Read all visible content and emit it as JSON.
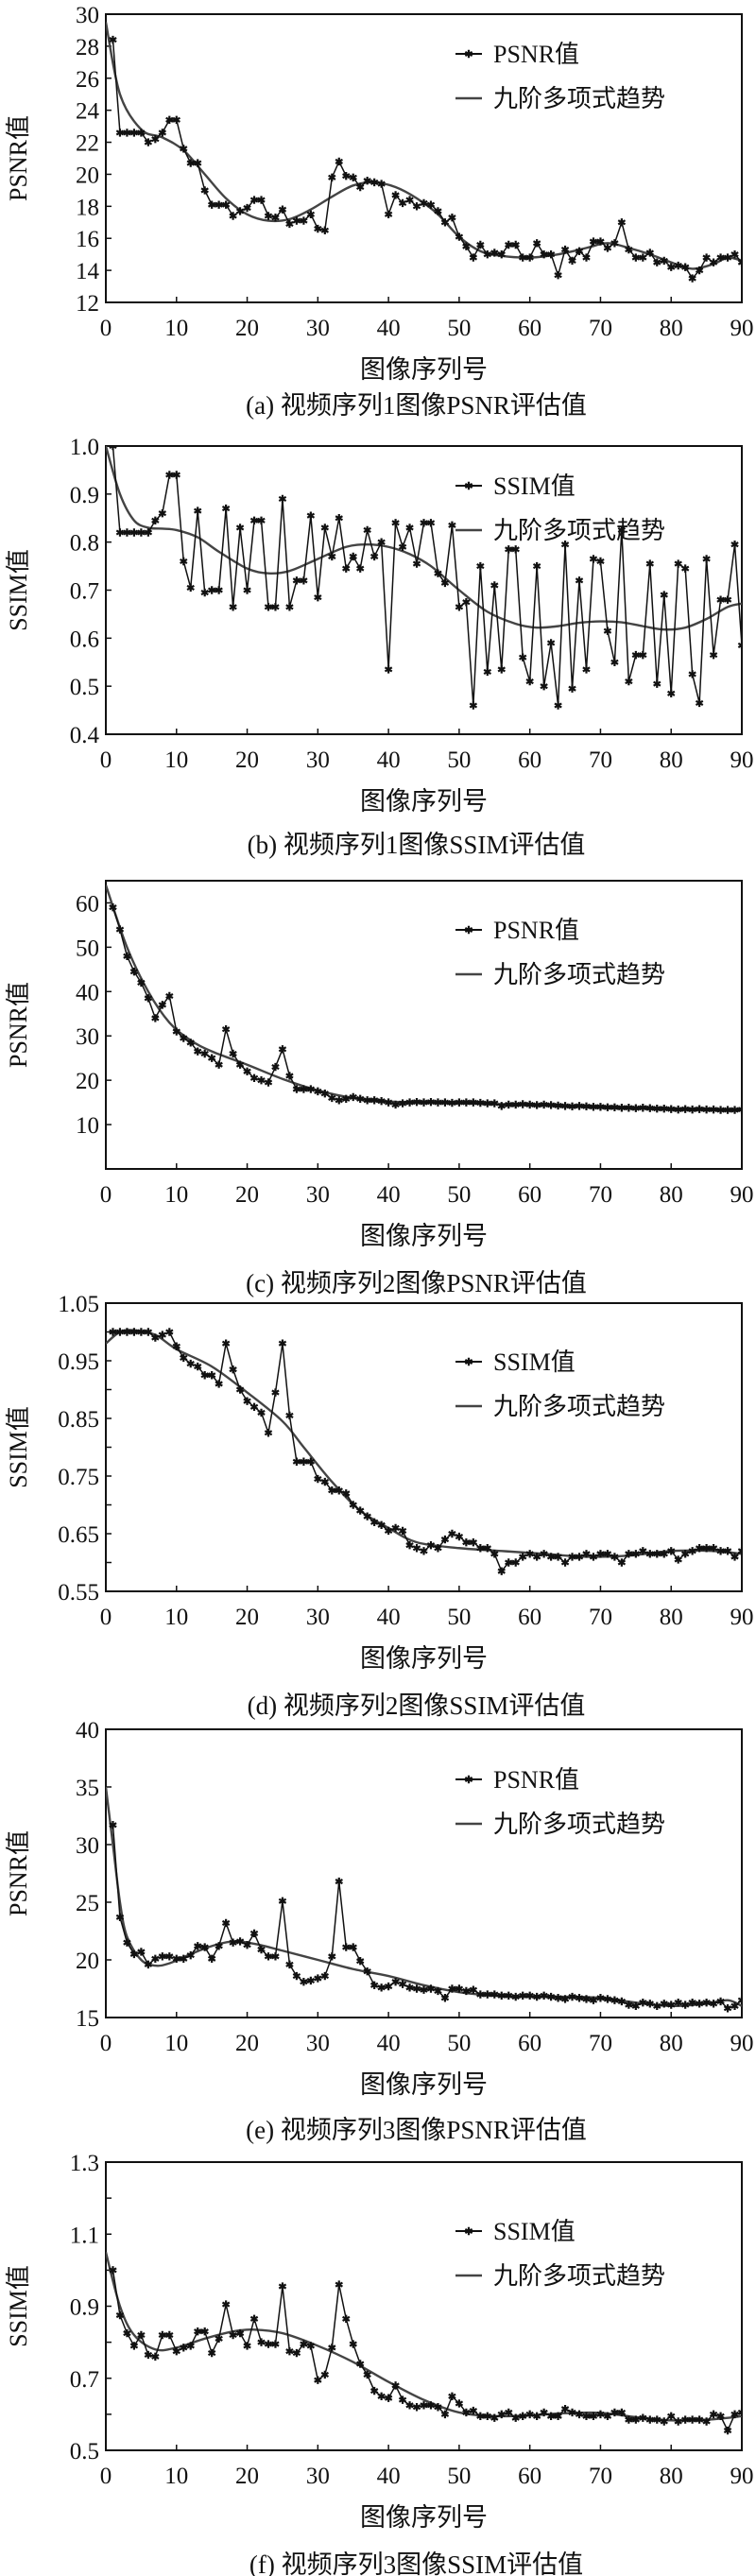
{
  "chart_data": [
    {
      "type": "line",
      "caption": "(a) 视频序列1图像PSNR评估值",
      "xlabel": "图像序列号",
      "ylabel": "PSNR值",
      "xlim": [
        0,
        90
      ],
      "ylim": [
        12,
        30
      ],
      "xticks": [
        0,
        10,
        20,
        30,
        40,
        50,
        60,
        70,
        80,
        90
      ],
      "yticks": [
        12,
        14,
        16,
        18,
        20,
        22,
        24,
        26,
        28,
        30
      ],
      "yminor": [],
      "legend": [
        "PSNR值",
        "九阶多项式趋势"
      ],
      "legend_position": "top-right",
      "series": [
        {
          "name": "PSNR值",
          "x_start": 1,
          "values": [
            28.4,
            22.6,
            22.6,
            22.6,
            22.6,
            22.0,
            22.2,
            22.6,
            23.4,
            23.4,
            21.6,
            20.7,
            20.7,
            19.0,
            18.1,
            18.1,
            18.1,
            17.4,
            17.7,
            17.9,
            18.4,
            18.4,
            17.4,
            17.3,
            17.8,
            16.9,
            17.1,
            17.1,
            17.5,
            16.6,
            16.5,
            19.8,
            20.8,
            19.9,
            19.8,
            19.2,
            19.6,
            19.5,
            19.4,
            17.5,
            18.7,
            18.2,
            18.4,
            18.0,
            18.2,
            18.1,
            17.7,
            17.0,
            17.3,
            16.1,
            15.5,
            14.8,
            15.6,
            15.0,
            15.1,
            15.0,
            15.6,
            15.6,
            14.8,
            14.8,
            15.7,
            15.0,
            15.0,
            13.7,
            15.3,
            14.6,
            15.2,
            14.8,
            15.8,
            15.8,
            15.4,
            15.7,
            17.0,
            15.3,
            14.8,
            14.8,
            15.1,
            14.5,
            14.6,
            14.2,
            14.3,
            14.2,
            13.5,
            14.0,
            14.8,
            14.5,
            14.8,
            14.8,
            15.0,
            14.5
          ]
        },
        {
          "name": "九阶多项式趋势",
          "x": [
            0,
            2,
            5,
            8,
            11,
            14,
            17,
            20,
            23,
            26,
            29,
            32,
            35,
            38,
            41,
            44,
            47,
            50,
            53,
            56,
            60,
            64,
            68,
            71,
            74,
            77,
            80,
            83,
            86,
            88,
            90
          ],
          "values": [
            29.5,
            25.0,
            22.8,
            22.3,
            21.5,
            20.0,
            18.5,
            17.5,
            17.1,
            17.2,
            17.8,
            18.6,
            19.3,
            19.5,
            19.2,
            18.5,
            17.5,
            16.1,
            15.2,
            14.9,
            14.8,
            15.0,
            15.4,
            15.7,
            15.4,
            15.0,
            14.5,
            14.1,
            14.4,
            14.8,
            14.6
          ]
        }
      ]
    },
    {
      "type": "line",
      "caption": "(b) 视频序列1图像SSIM评估值",
      "xlabel": "图像序列号",
      "ylabel": "SSIM值",
      "xlim": [
        0,
        90
      ],
      "ylim": [
        0.4,
        1.0
      ],
      "xticks": [
        0,
        10,
        20,
        30,
        40,
        50,
        60,
        70,
        80,
        90
      ],
      "yticks": [
        0.4,
        0.5,
        0.6,
        0.7,
        0.8,
        0.9,
        1.0
      ],
      "yminor": [],
      "legend": [
        "SSIM值",
        "九阶多项式趋势"
      ],
      "legend_position": "top-right",
      "series": [
        {
          "name": "SSIM值",
          "x_start": 1,
          "values": [
            1.0,
            0.82,
            0.82,
            0.82,
            0.82,
            0.82,
            0.845,
            0.86,
            0.94,
            0.94,
            0.76,
            0.705,
            0.865,
            0.695,
            0.7,
            0.7,
            0.87,
            0.665,
            0.83,
            0.7,
            0.845,
            0.845,
            0.665,
            0.665,
            0.89,
            0.665,
            0.72,
            0.72,
            0.855,
            0.685,
            0.83,
            0.77,
            0.85,
            0.745,
            0.77,
            0.745,
            0.825,
            0.77,
            0.8,
            0.535,
            0.84,
            0.79,
            0.83,
            0.755,
            0.84,
            0.84,
            0.735,
            0.715,
            0.835,
            0.665,
            0.675,
            0.46,
            0.75,
            0.53,
            0.71,
            0.535,
            0.785,
            0.785,
            0.56,
            0.51,
            0.75,
            0.5,
            0.59,
            0.46,
            0.795,
            0.495,
            0.72,
            0.535,
            0.765,
            0.76,
            0.615,
            0.55,
            0.825,
            0.51,
            0.565,
            0.565,
            0.755,
            0.505,
            0.69,
            0.485,
            0.755,
            0.745,
            0.525,
            0.465,
            0.765,
            0.565,
            0.68,
            0.68,
            0.795,
            0.585
          ]
        },
        {
          "name": "九阶多项式趋势",
          "x": [
            0,
            2,
            4,
            6,
            8,
            10,
            13,
            16,
            20,
            23,
            26,
            30,
            34,
            37,
            40,
            43,
            46,
            50,
            54,
            58,
            61,
            64,
            67,
            70,
            73,
            76,
            79,
            82,
            85,
            88,
            90
          ],
          "values": [
            1.0,
            0.9,
            0.845,
            0.83,
            0.828,
            0.825,
            0.81,
            0.78,
            0.745,
            0.735,
            0.74,
            0.765,
            0.79,
            0.795,
            0.79,
            0.775,
            0.75,
            0.7,
            0.655,
            0.63,
            0.622,
            0.625,
            0.632,
            0.635,
            0.633,
            0.625,
            0.618,
            0.622,
            0.64,
            0.665,
            0.672
          ]
        }
      ]
    },
    {
      "type": "line",
      "caption": "(c) 视频序列2图像PSNR评估值",
      "xlabel": "图像序列号",
      "ylabel": "PSNR值",
      "xlim": [
        0,
        90
      ],
      "ylim": [
        0,
        65
      ],
      "xticks": [
        0,
        10,
        20,
        30,
        40,
        50,
        60,
        70,
        80,
        90
      ],
      "yticks": [
        10,
        20,
        30,
        40,
        50,
        60
      ],
      "yminor": [],
      "legend": [
        "PSNR值",
        "九阶多项式趋势"
      ],
      "legend_position": "top-right",
      "series": [
        {
          "name": "PSNR值",
          "x_start": 1,
          "values": [
            59,
            54,
            48,
            44.5,
            42,
            38.5,
            34,
            37,
            39,
            31,
            29.5,
            28.5,
            26.5,
            26,
            25,
            23.5,
            31.5,
            26,
            23.5,
            22,
            20.5,
            20,
            19.5,
            23,
            27,
            21,
            18,
            18,
            18,
            17.5,
            17,
            16,
            15.5,
            15.8,
            16.2,
            15.8,
            15.5,
            15.5,
            15.3,
            15,
            14.5,
            14.8,
            15,
            15.1,
            15,
            15.1,
            15,
            15,
            14.9,
            15,
            15,
            15,
            14.9,
            14.8,
            14.8,
            14.2,
            14.5,
            14.5,
            14.6,
            14.5,
            14.4,
            14.5,
            14.4,
            14.3,
            14.2,
            14.1,
            14.2,
            14.1,
            14,
            14,
            13.9,
            13.9,
            13.8,
            13.8,
            13.7,
            13.8,
            13.7,
            13.6,
            13.6,
            13.5,
            13.4,
            13.5,
            13.4,
            13.5,
            13.4,
            13.4,
            13.3,
            13.3,
            13.3,
            13.4
          ]
        },
        {
          "name": "九阶多项式趋势",
          "x": [
            0,
            3,
            6,
            9,
            12,
            15,
            20,
            25,
            30,
            35,
            40,
            50,
            60,
            70,
            80,
            90
          ],
          "values": [
            64,
            50,
            40,
            33,
            29,
            26.5,
            23.5,
            20.3,
            17.7,
            16,
            15.2,
            14.8,
            14.5,
            14,
            13.5,
            13.3
          ]
        }
      ]
    },
    {
      "type": "line",
      "caption": "(d) 视频序列2图像SSIM评估值",
      "xlabel": "图像序列号",
      "ylabel": "SSIM值",
      "xlim": [
        0,
        90
      ],
      "ylim": [
        0.55,
        1.05
      ],
      "xticks": [
        0,
        10,
        20,
        30,
        40,
        50,
        60,
        70,
        80,
        90
      ],
      "yticks": [
        0.55,
        0.65,
        0.75,
        0.85,
        0.95,
        1.05
      ],
      "yminor": [
        0.6,
        0.7,
        0.8,
        0.9,
        1.0
      ],
      "legend": [
        "SSIM值",
        "九阶多项式趋势"
      ],
      "legend_position": "top-right",
      "series": [
        {
          "name": "SSIM值",
          "x_start": 1,
          "values": [
            1.0,
            1.0,
            1.0,
            1.0,
            1.0,
            1.0,
            0.99,
            0.995,
            1.0,
            0.975,
            0.955,
            0.945,
            0.94,
            0.925,
            0.925,
            0.91,
            0.98,
            0.935,
            0.9,
            0.88,
            0.87,
            0.86,
            0.825,
            0.895,
            0.98,
            0.855,
            0.775,
            0.775,
            0.775,
            0.745,
            0.74,
            0.725,
            0.725,
            0.72,
            0.7,
            0.69,
            0.68,
            0.67,
            0.665,
            0.655,
            0.66,
            0.655,
            0.63,
            0.625,
            0.62,
            0.63,
            0.625,
            0.64,
            0.65,
            0.645,
            0.635,
            0.635,
            0.625,
            0.625,
            0.615,
            0.585,
            0.6,
            0.6,
            0.61,
            0.615,
            0.61,
            0.615,
            0.61,
            0.61,
            0.6,
            0.61,
            0.61,
            0.615,
            0.61,
            0.615,
            0.615,
            0.61,
            0.6,
            0.615,
            0.615,
            0.62,
            0.615,
            0.615,
            0.615,
            0.62,
            0.605,
            0.615,
            0.62,
            0.625,
            0.625,
            0.625,
            0.62,
            0.62,
            0.61,
            0.62
          ]
        },
        {
          "name": "九阶多项式趋势",
          "x": [
            0,
            2,
            4,
            7,
            10,
            15,
            20,
            25,
            28,
            32,
            36,
            40,
            44,
            50,
            56,
            62,
            68,
            74,
            80,
            86,
            90
          ],
          "values": [
            0.98,
            1.0,
            1.003,
            0.995,
            0.97,
            0.94,
            0.895,
            0.845,
            0.8,
            0.74,
            0.69,
            0.66,
            0.635,
            0.625,
            0.62,
            0.615,
            0.61,
            0.612,
            0.62,
            0.62,
            0.615
          ]
        }
      ]
    },
    {
      "type": "line",
      "caption": "(e) 视频序列3图像PSNR评估值",
      "xlabel": "图像序列号",
      "ylabel": "PSNR值",
      "xlim": [
        0,
        90
      ],
      "ylim": [
        15,
        40
      ],
      "xticks": [
        0,
        10,
        20,
        30,
        40,
        50,
        60,
        70,
        80,
        90
      ],
      "yticks": [
        15,
        20,
        25,
        30,
        35,
        40
      ],
      "yminor": [],
      "legend": [
        "PSNR值",
        "九阶多项式趋势"
      ],
      "legend_position": "top-right",
      "series": [
        {
          "name": "PSNR值",
          "x_start": 1,
          "values": [
            31.7,
            23.7,
            21.5,
            20.5,
            20.7,
            19.6,
            20.1,
            20.3,
            20.3,
            20.1,
            20.1,
            20.4,
            21.2,
            21.1,
            20.1,
            21.2,
            23.2,
            21.5,
            21.6,
            21.3,
            22.3,
            20.9,
            20.3,
            20.3,
            25.1,
            19.6,
            18.6,
            18.1,
            18.2,
            18.4,
            18.6,
            20.3,
            26.8,
            21.1,
            21.1,
            19.9,
            19.0,
            17.8,
            17.6,
            17.7,
            18.1,
            17.9,
            17.6,
            17.5,
            17.4,
            17.5,
            17.3,
            16.7,
            17.5,
            17.5,
            17.3,
            17.4,
            17.0,
            17.0,
            17.0,
            16.9,
            16.9,
            16.8,
            16.9,
            16.9,
            16.8,
            16.9,
            16.8,
            16.7,
            16.6,
            16.8,
            16.7,
            16.6,
            16.5,
            16.7,
            16.6,
            16.5,
            16.4,
            16.1,
            16.0,
            16.3,
            16.2,
            16.0,
            16.2,
            16.1,
            16.3,
            16.1,
            16.3,
            16.2,
            16.3,
            16.2,
            16.4,
            15.8,
            16.0,
            16.5
          ]
        },
        {
          "name": "九阶多项式趋势",
          "x": [
            0,
            1,
            2,
            3,
            5,
            7,
            9,
            12,
            15,
            18,
            21,
            25,
            30,
            35,
            40,
            45,
            50,
            55,
            60,
            65,
            70,
            75,
            80,
            85,
            88,
            90
          ],
          "values": [
            35,
            30,
            25,
            22,
            20,
            19.5,
            19.7,
            20.5,
            21.2,
            21.6,
            21.4,
            20.8,
            20,
            19.2,
            18.6,
            17.8,
            17.2,
            16.9,
            16.8,
            16.8,
            16.7,
            16.3,
            16.0,
            16.2,
            16.5,
            16.0
          ]
        }
      ]
    },
    {
      "type": "line",
      "caption": "(f) 视频序列3图像SSIM评估值",
      "xlabel": "图像序列号",
      "ylabel": "SSIM值",
      "xlim": [
        0,
        90
      ],
      "ylim": [
        0.5,
        1.3
      ],
      "xticks": [
        0,
        10,
        20,
        30,
        40,
        50,
        60,
        70,
        80,
        90
      ],
      "yticks": [
        0.5,
        0.7,
        0.9,
        1.1,
        1.3
      ],
      "yminor": [
        0.6,
        0.8,
        1.0,
        1.2
      ],
      "legend": [
        "SSIM值",
        "九阶多项式趋势"
      ],
      "legend_position": "top-right",
      "series": [
        {
          "name": "SSIM值",
          "x_start": 1,
          "values": [
            1.0,
            0.875,
            0.825,
            0.79,
            0.82,
            0.765,
            0.76,
            0.82,
            0.82,
            0.775,
            0.785,
            0.79,
            0.83,
            0.83,
            0.77,
            0.81,
            0.905,
            0.82,
            0.825,
            0.79,
            0.865,
            0.8,
            0.795,
            0.795,
            0.955,
            0.775,
            0.77,
            0.795,
            0.79,
            0.695,
            0.71,
            0.785,
            0.96,
            0.865,
            0.795,
            0.74,
            0.71,
            0.665,
            0.65,
            0.645,
            0.68,
            0.64,
            0.625,
            0.62,
            0.625,
            0.625,
            0.62,
            0.6,
            0.65,
            0.63,
            0.605,
            0.61,
            0.595,
            0.595,
            0.59,
            0.6,
            0.605,
            0.59,
            0.595,
            0.6,
            0.595,
            0.605,
            0.595,
            0.595,
            0.615,
            0.605,
            0.6,
            0.595,
            0.595,
            0.6,
            0.595,
            0.605,
            0.605,
            0.585,
            0.585,
            0.59,
            0.585,
            0.585,
            0.58,
            0.595,
            0.58,
            0.585,
            0.585,
            0.585,
            0.58,
            0.6,
            0.595,
            0.555,
            0.6,
            0.605
          ]
        },
        {
          "name": "九阶多项式趋势",
          "x": [
            0,
            2,
            4,
            7,
            10,
            14,
            18,
            21,
            25,
            30,
            35,
            40,
            45,
            50,
            55,
            60,
            65,
            70,
            75,
            80,
            85,
            88,
            90
          ],
          "values": [
            1.05,
            0.9,
            0.82,
            0.78,
            0.785,
            0.81,
            0.83,
            0.835,
            0.825,
            0.79,
            0.745,
            0.69,
            0.64,
            0.605,
            0.595,
            0.597,
            0.603,
            0.604,
            0.592,
            0.583,
            0.585,
            0.59,
            0.595
          ]
        }
      ]
    }
  ]
}
